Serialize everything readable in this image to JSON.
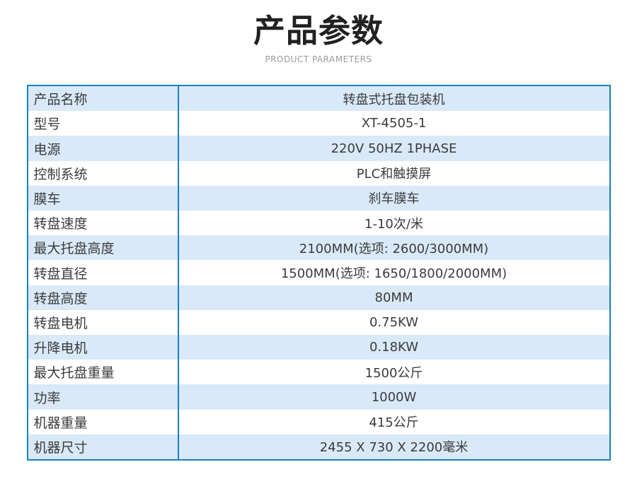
{
  "page": {
    "title": "产品参数",
    "subtitle": "PRODUCT PARAMETERS"
  },
  "colors": {
    "border_blue": "#1a80c4",
    "row_alt_blue": "#d9e9f8",
    "row_white": "#ffffff",
    "text_dark": "#3b3b3b",
    "title_black": "#212121",
    "subtitle_gray": "#9b9b9b"
  },
  "table": {
    "rows": [
      {
        "label": "产品名称",
        "value": "转盘式托盘包装机"
      },
      {
        "label": "型号",
        "value": "XT-4505-1"
      },
      {
        "label": "电源",
        "value": "220V 50HZ 1PHASE"
      },
      {
        "label": "控制系统",
        "value": "PLC和触摸屏"
      },
      {
        "label": "膜车",
        "value": "刹车膜车"
      },
      {
        "label": "转盘速度",
        "value": "1-10次/米"
      },
      {
        "label": "最大托盘高度",
        "value": "2100MM(选项: 2600/3000MM)"
      },
      {
        "label": "转盘直径",
        "value": "1500MM(选项: 1650/1800/2000MM)"
      },
      {
        "label": "转盘高度",
        "value": "80MM"
      },
      {
        "label": "转盘电机",
        "value": "0.75KW"
      },
      {
        "label": "升降电机",
        "value": "0.18KW"
      },
      {
        "label": "最大托盘重量",
        "value": "1500公斤"
      },
      {
        "label": "功率",
        "value": "1000W"
      },
      {
        "label": "机器重量",
        "value": "415公斤"
      },
      {
        "label": "机器尺寸",
        "value": "2455 X 730 X 2200毫米"
      }
    ]
  }
}
